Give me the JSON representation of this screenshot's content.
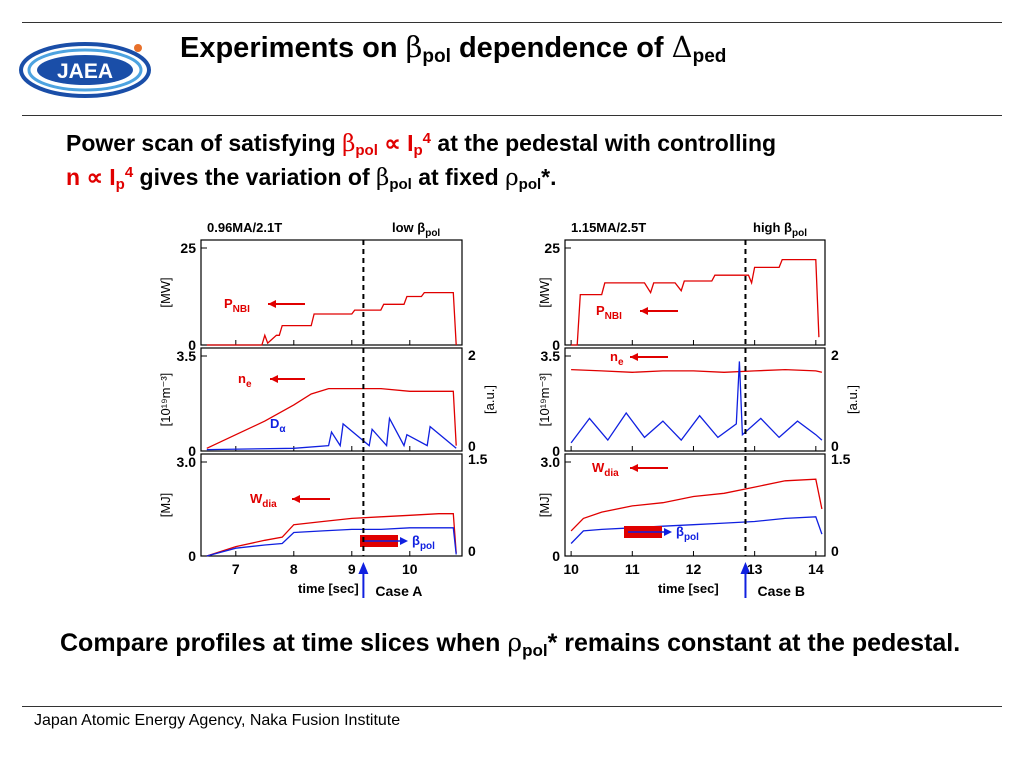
{
  "header": {
    "logo_text": "JAEA",
    "title": {
      "pre": "Experiments on ",
      "beta": "β",
      "pol": "pol",
      "mid": " dependence of ",
      "delta": "Δ",
      "ped": "ped"
    }
  },
  "intro": {
    "l1_a": "Power scan of satisfying ",
    "l1_beta": "β",
    "l1_pol": "pol",
    "l1_prop": " ∝ I",
    "l1_p": "p",
    "l1_4": "4",
    "l1_b": " at the pedestal with controlling",
    "l2_n": "n ∝ I",
    "l2_p": "p",
    "l2_4": "4",
    "l2_a": " gives the variation of ",
    "l2_beta": "β",
    "l2_pol": "pol",
    "l2_b": " at fixed ",
    "l2_rho": "ρ",
    "l2_pol2": "pol",
    "l2_star": "*."
  },
  "conclusion": {
    "a": "Compare profiles at time slices when ",
    "rho": "ρ",
    "pol": "pol",
    "b": "* remains constant at the pedestal."
  },
  "footer": "Japan Atomic Energy Agency, Naka Fusion Institute",
  "colors": {
    "red": "#e00000",
    "blue": "#1020e0",
    "rule": "#333333"
  },
  "chart_data": [
    {
      "type": "line",
      "title": "0.96MA/2.1T",
      "label_main": "low β",
      "label_sub": "pol",
      "xlabel": "time [sec]",
      "xlim": [
        6.4,
        10.9
      ],
      "xticks": [
        7,
        8,
        9,
        10
      ],
      "xtick_labels": [
        "7",
        "8",
        "9",
        "10"
      ],
      "case_label": "Case A",
      "marker_time": 9.2,
      "panels": [
        {
          "ylabel": "[MW]",
          "ylim": [
            0,
            25
          ],
          "yticks": [
            0,
            25
          ],
          "ytick_labels": [
            "0",
            "25"
          ],
          "series": [
            {
              "name_main": "P",
              "name_sub": "NBI",
              "color": "#e00000",
              "x": [
                6.5,
                7.45,
                7.5,
                7.55,
                7.7,
                7.75,
                7.8,
                8.3,
                8.35,
                9.0,
                9.05,
                9.5,
                9.55,
                9.9,
                9.95,
                10.2,
                10.25,
                10.55,
                10.6,
                10.75,
                10.8
              ],
              "y": [
                0,
                0,
                2.5,
                0.5,
                2.5,
                2.5,
                5,
                5,
                8,
                8,
                9,
                9,
                10.5,
                10.5,
                12.5,
                12.5,
                13.5,
                13.5,
                13.5,
                13.5,
                0
              ]
            }
          ]
        },
        {
          "ylabel": "[10¹⁹m⁻³]",
          "ylim": [
            0,
            3.5
          ],
          "yticks": [
            0,
            3.5
          ],
          "ytick_labels": [
            "0",
            "3.5"
          ],
          "y2label": "[a.u.]",
          "y2ticks": [
            "0",
            "2"
          ],
          "series": [
            {
              "name_main": "n",
              "name_sub": "e",
              "color": "#e00000",
              "x": [
                6.5,
                7.0,
                7.5,
                8.0,
                8.3,
                8.6,
                9.0,
                9.5,
                10.0,
                10.5,
                10.75,
                10.8
              ],
              "y": [
                0.1,
                0.6,
                1.1,
                1.7,
                2.1,
                2.3,
                2.3,
                2.3,
                2.2,
                2.2,
                2.2,
                0.2
              ]
            },
            {
              "name_main": "D",
              "name_sub": "α",
              "color": "#1020e0",
              "x": [
                6.5,
                8.0,
                8.6,
                8.65,
                8.8,
                8.85,
                9.3,
                9.35,
                9.6,
                9.65,
                9.9,
                9.95,
                10.3,
                10.35,
                10.8
              ],
              "y": [
                0.05,
                0.1,
                0.2,
                0.7,
                0.2,
                1.0,
                0.2,
                0.8,
                0.2,
                1.2,
                0.2,
                0.6,
                0.2,
                0.9,
                0.1
              ]
            }
          ]
        },
        {
          "ylabel": "[MJ]",
          "ylim": [
            0,
            3.0
          ],
          "yticks": [
            0,
            3.0
          ],
          "ytick_labels": [
            "0",
            "3.0"
          ],
          "y2ticks": [
            "0",
            "1.5"
          ],
          "series": [
            {
              "name_main": "W",
              "name_sub": "dia",
              "color": "#e00000",
              "x": [
                6.5,
                7.0,
                7.5,
                7.8,
                8.0,
                8.5,
                9.0,
                9.5,
                10.0,
                10.5,
                10.75,
                10.8
              ],
              "y": [
                0.0,
                0.3,
                0.5,
                0.6,
                1.0,
                1.1,
                1.2,
                1.25,
                1.3,
                1.35,
                1.35,
                0.1
              ]
            },
            {
              "name_main": "β",
              "name_sub": "pol",
              "color": "#1020e0",
              "x": [
                6.5,
                7.0,
                7.5,
                7.8,
                8.0,
                8.5,
                9.0,
                9.5,
                10.0,
                10.5,
                10.75,
                10.8
              ],
              "y": [
                0.0,
                0.25,
                0.35,
                0.4,
                0.75,
                0.8,
                0.85,
                0.85,
                0.9,
                0.9,
                0.9,
                0.05
              ]
            }
          ]
        }
      ]
    },
    {
      "type": "line",
      "title": "1.15MA/2.5T",
      "label_main": "high β",
      "label_sub": "pol",
      "xlabel": "time [sec]",
      "xlim": [
        9.9,
        14.15
      ],
      "xticks": [
        10,
        11,
        12,
        13,
        14
      ],
      "xtick_labels": [
        "10",
        "11",
        "12",
        "13",
        "14"
      ],
      "case_label": "Case B",
      "marker_time": 12.85,
      "panels": [
        {
          "ylabel": "[MW]",
          "ylim": [
            0,
            25
          ],
          "yticks": [
            0,
            25
          ],
          "ytick_labels": [
            "0",
            "25"
          ],
          "series": [
            {
              "name_main": "P",
              "name_sub": "NBI",
              "color": "#e00000",
              "x": [
                10.0,
                10.1,
                10.15,
                10.5,
                10.55,
                11.2,
                11.3,
                11.35,
                11.7,
                11.8,
                11.85,
                12.3,
                12.35,
                12.9,
                12.95,
                13.0,
                13.05,
                13.4,
                13.45,
                14.0,
                14.05
              ],
              "y": [
                0,
                0,
                13,
                13,
                16,
                16,
                13.5,
                16,
                16,
                14,
                16.5,
                16.5,
                18,
                18,
                16,
                20,
                20,
                20,
                22,
                22,
                2
              ]
            }
          ]
        },
        {
          "ylabel": "[10¹⁹m⁻³]",
          "ylim": [
            0,
            3.5
          ],
          "yticks": [
            0,
            3.5
          ],
          "ytick_labels": [
            "0",
            "3.5"
          ],
          "y2label": "[a.u.]",
          "y2ticks": [
            "0",
            "2"
          ],
          "series": [
            {
              "name_main": "n",
              "name_sub": "e",
              "color": "#e00000",
              "x": [
                10.0,
                10.5,
                11.0,
                11.5,
                12.0,
                12.5,
                13.0,
                13.5,
                14.0,
                14.1
              ],
              "y": [
                3.0,
                2.95,
                2.9,
                2.95,
                2.95,
                2.9,
                2.95,
                3.0,
                2.95,
                2.9
              ]
            },
            {
              "name_main": "D",
              "name_sub": "α",
              "color": "#1020e0",
              "x": [
                10.0,
                10.3,
                10.6,
                10.9,
                11.2,
                11.5,
                11.8,
                12.1,
                12.4,
                12.7,
                12.75,
                12.8,
                13.1,
                13.4,
                13.7,
                14.0,
                14.1
              ],
              "y": [
                0.3,
                1.2,
                0.4,
                1.4,
                0.5,
                1.1,
                0.4,
                1.3,
                0.5,
                1.0,
                3.3,
                0.6,
                1.2,
                0.5,
                1.1,
                0.6,
                0.4
              ]
            }
          ]
        },
        {
          "ylabel": "[MJ]",
          "ylim": [
            0,
            3.0
          ],
          "yticks": [
            0,
            3.0
          ],
          "ytick_labels": [
            "0",
            "3.0"
          ],
          "y2ticks": [
            "0",
            "1.5"
          ],
          "series": [
            {
              "name_main": "W",
              "name_sub": "dia",
              "color": "#e00000",
              "x": [
                10.0,
                10.2,
                10.5,
                11.0,
                11.5,
                12.0,
                12.5,
                13.0,
                13.5,
                14.0,
                14.1
              ],
              "y": [
                0.8,
                1.2,
                1.4,
                1.6,
                1.7,
                1.9,
                2.0,
                2.2,
                2.4,
                2.45,
                1.5
              ]
            },
            {
              "name_main": "β",
              "name_sub": "pol",
              "color": "#1020e0",
              "x": [
                10.0,
                10.2,
                10.5,
                11.0,
                11.5,
                12.0,
                12.5,
                13.0,
                13.5,
                14.0,
                14.1
              ],
              "y": [
                0.4,
                0.8,
                0.85,
                0.9,
                0.95,
                1.0,
                1.05,
                1.1,
                1.2,
                1.25,
                0.7
              ]
            }
          ]
        }
      ]
    }
  ]
}
